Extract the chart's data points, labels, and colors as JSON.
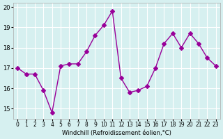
{
  "x": [
    0,
    1,
    2,
    3,
    4,
    5,
    6,
    7,
    8,
    9,
    10,
    11,
    12,
    13,
    14,
    15,
    16,
    17,
    18,
    19,
    20,
    21,
    22,
    23
  ],
  "y": [
    17.0,
    16.7,
    16.7,
    15.9,
    14.8,
    17.1,
    17.2,
    17.2,
    17.8,
    18.6,
    19.1,
    19.8,
    16.5,
    15.8,
    15.9,
    16.1,
    17.0,
    18.2,
    18.7,
    18.0,
    18.7,
    18.2,
    17.5,
    17.1
  ],
  "xlabel": "Windchill (Refroidissement éolien,°C)",
  "xtick_labels": [
    "0",
    "1",
    "2",
    "3",
    "4",
    "5",
    "6",
    "7",
    "8",
    "9",
    "10",
    "11",
    "12",
    "13",
    "14",
    "15",
    "16",
    "17",
    "18",
    "19",
    "20",
    "21",
    "22",
    "23"
  ],
  "ylim": [
    14.5,
    20.2
  ],
  "yticks": [
    15,
    16,
    17,
    18,
    19,
    20
  ],
  "line_color": "#990099",
  "marker": "D",
  "marker_size": 3,
  "bg_color": "#d6f0f0",
  "grid_color": "#ffffff",
  "figsize": [
    3.2,
    2.0
  ],
  "dpi": 100
}
